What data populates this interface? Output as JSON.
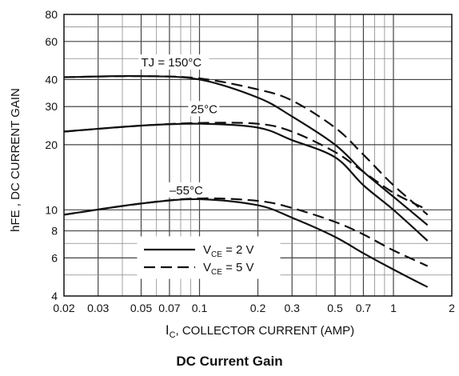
{
  "caption": "DC Current Gain",
  "chart_data": {
    "type": "line",
    "title": "",
    "xlabel": "IC, COLLECTOR CURRENT (AMP)",
    "ylabel": "hFE , DC CURRENT GAIN",
    "xscale": "log",
    "yscale": "log",
    "xlim": [
      0.02,
      2
    ],
    "ylim": [
      4,
      80
    ],
    "grid": true,
    "x_ticks": [
      {
        "v": 0.02,
        "t": "0.02"
      },
      {
        "v": 0.03,
        "t": "0.03"
      },
      {
        "v": 0.05,
        "t": "0.05"
      },
      {
        "v": 0.07,
        "t": "0.07"
      },
      {
        "v": 0.1,
        "t": "0.1"
      },
      {
        "v": 0.2,
        "t": "0.2"
      },
      {
        "v": 0.3,
        "t": "0.3"
      },
      {
        "v": 0.5,
        "t": "0.5"
      },
      {
        "v": 0.7,
        "t": "0.7"
      },
      {
        "v": 1,
        "t": "1"
      },
      {
        "v": 2,
        "t": "2"
      }
    ],
    "y_ticks": [
      {
        "v": 4,
        "t": "4"
      },
      {
        "v": 6,
        "t": "6"
      },
      {
        "v": 8,
        "t": "8"
      },
      {
        "v": 10,
        "t": "10"
      },
      {
        "v": 20,
        "t": "20"
      },
      {
        "v": 30,
        "t": "30"
      },
      {
        "v": 40,
        "t": "40"
      },
      {
        "v": 60,
        "t": "60"
      },
      {
        "v": 80,
        "t": "80"
      }
    ],
    "legend": {
      "placement": "bottom-center",
      "entries": [
        {
          "main": "V",
          "sub": "CE",
          "rest": " = 2 V",
          "style": "solid"
        },
        {
          "main": "V",
          "sub": "CE",
          "rest": " = 5 V",
          "style": "dashed"
        }
      ]
    },
    "annotations": [
      {
        "label": "TJ = 150°C",
        "x": 0.05,
        "y": 46
      },
      {
        "label": "25°C",
        "x": 0.09,
        "y": 28
      },
      {
        "label": "–55°C",
        "x": 0.07,
        "y": 11.8
      }
    ],
    "series": [
      {
        "style": "solid",
        "x": [
          0.02,
          0.05,
          0.1,
          0.2,
          0.3,
          0.5,
          0.7,
          1.0,
          1.5
        ],
        "y": [
          41,
          41.5,
          40,
          33,
          27,
          20,
          15,
          11.5,
          8.5
        ]
      },
      {
        "style": "dashed",
        "x": [
          0.02,
          0.05,
          0.1,
          0.2,
          0.3,
          0.5,
          0.7,
          1.0,
          1.5
        ],
        "y": [
          41,
          41.5,
          40.5,
          36,
          32,
          24,
          18,
          13,
          9.5
        ]
      },
      {
        "style": "solid",
        "x": [
          0.02,
          0.05,
          0.1,
          0.2,
          0.3,
          0.5,
          0.7,
          1.0,
          1.5
        ],
        "y": [
          23,
          24.5,
          25,
          24,
          21,
          17.5,
          13,
          10,
          7.2
        ]
      },
      {
        "style": "dashed",
        "x": [
          0.02,
          0.05,
          0.1,
          0.2,
          0.3,
          0.5,
          0.7,
          1.0,
          1.5
        ],
        "y": [
          23,
          24.5,
          25.2,
          25,
          23,
          18.5,
          15,
          12,
          10
        ]
      },
      {
        "style": "solid",
        "x": [
          0.02,
          0.05,
          0.1,
          0.2,
          0.3,
          0.5,
          0.7,
          1.0,
          1.5
        ],
        "y": [
          9.5,
          10.7,
          11.2,
          10.5,
          9.2,
          7.5,
          6.3,
          5.3,
          4.4
        ]
      },
      {
        "style": "dashed",
        "x": [
          0.02,
          0.05,
          0.1,
          0.2,
          0.3,
          0.5,
          0.7,
          1.0,
          1.5
        ],
        "y": [
          9.5,
          10.7,
          11.3,
          11,
          10.2,
          8.8,
          7.7,
          6.5,
          5.5
        ]
      }
    ]
  }
}
